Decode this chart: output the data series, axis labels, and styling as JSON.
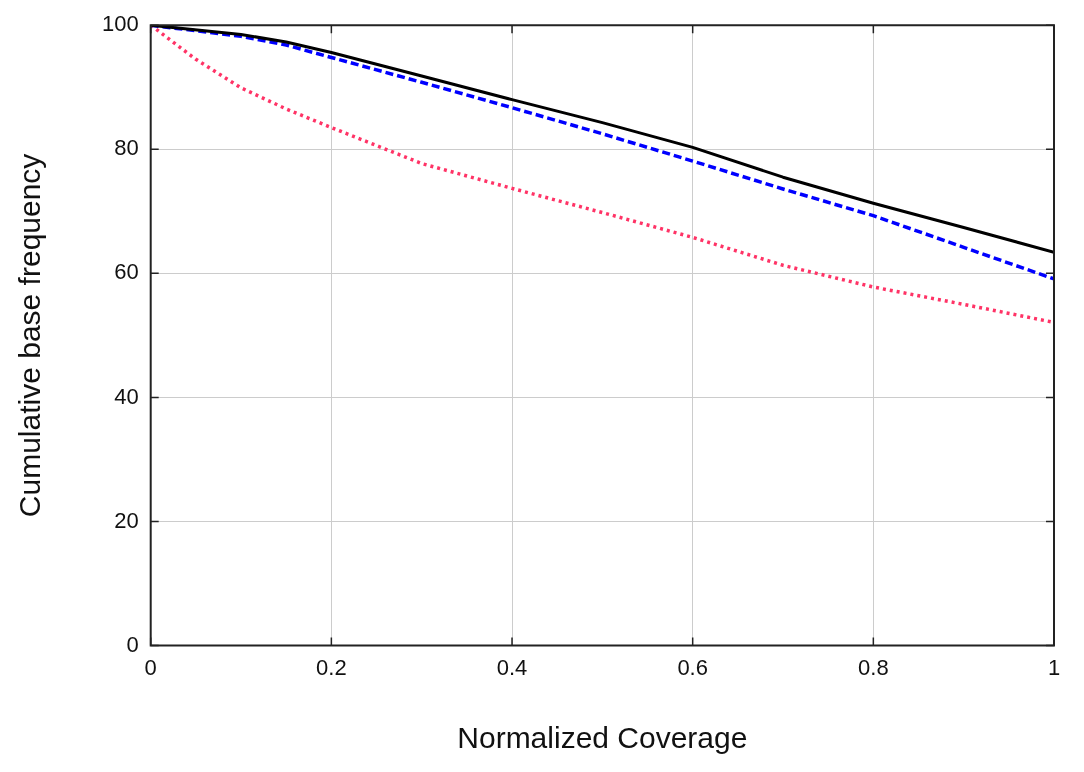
{
  "chart_data": {
    "type": "line",
    "xlabel": "Normalized Coverage",
    "ylabel": "Cumulative base frequency",
    "xlim": [
      0,
      1
    ],
    "ylim": [
      0,
      100
    ],
    "xticks": [
      0,
      0.2,
      0.4,
      0.6,
      0.8,
      1
    ],
    "yticks": [
      0,
      20,
      40,
      60,
      80,
      100
    ],
    "grid": true,
    "legend": false,
    "marker": "none",
    "series": [
      {
        "color": "#000000",
        "line_style": "solid",
        "x": [
          0,
          0.1,
          0.15,
          0.2,
          0.3,
          0.4,
          0.5,
          0.6,
          0.7,
          0.8,
          0.9,
          1
        ],
        "values": [
          100,
          98.5,
          97.3,
          95.6,
          91.8,
          88,
          84.3,
          80.3,
          75.5,
          71.3,
          67.4,
          63.4
        ]
      },
      {
        "color": "#0000ff",
        "line_style": "dashed",
        "x": [
          0,
          0.1,
          0.15,
          0.2,
          0.3,
          0.4,
          0.5,
          0.6,
          0.7,
          0.8,
          0.9,
          1
        ],
        "values": [
          100,
          98.2,
          96.8,
          94.8,
          90.8,
          86.7,
          82.5,
          78.1,
          73.6,
          69.3,
          64.2,
          59.1
        ]
      },
      {
        "color": "#ff3366",
        "line_style": "dotted",
        "x": [
          0,
          0.05,
          0.1,
          0.15,
          0.2,
          0.3,
          0.4,
          0.5,
          0.6,
          0.7,
          0.8,
          0.9,
          1
        ],
        "values": [
          100,
          94.5,
          89.9,
          86.5,
          83.5,
          77.7,
          73.7,
          69.8,
          65.8,
          61.3,
          57.8,
          55,
          52.1
        ]
      }
    ]
  }
}
